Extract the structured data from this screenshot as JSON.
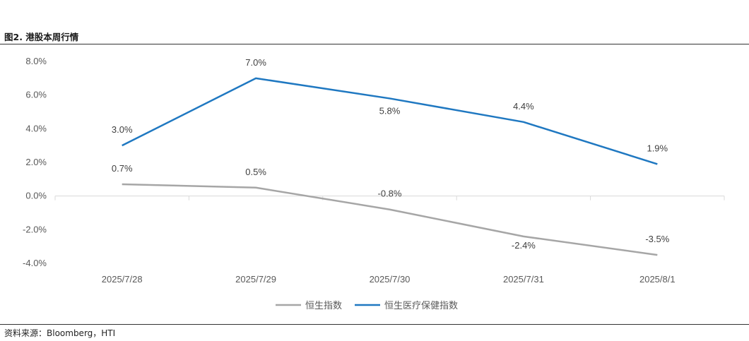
{
  "figure": {
    "title": "图2.  港股本周行情",
    "source": "资料来源：Bloomberg，HTI"
  },
  "chart_data": {
    "type": "line",
    "categories": [
      "2025/7/28",
      "2025/7/29",
      "2025/7/30",
      "2025/7/31",
      "2025/8/1"
    ],
    "series": [
      {
        "name": "恒生指数",
        "color": "#A6A6A6",
        "values": [
          0.7,
          0.5,
          -0.8,
          -2.4,
          -3.5
        ],
        "labels": [
          "0.7%",
          "0.5%",
          "-0.8%",
          "-2.4%",
          "-3.5%"
        ]
      },
      {
        "name": "恒生医疗保健指数",
        "color": "#1F78C1",
        "values": [
          3.0,
          7.0,
          5.8,
          4.4,
          1.9
        ],
        "labels": [
          "3.0%",
          "7.0%",
          "5.8%",
          "4.4%",
          "1.9%"
        ]
      }
    ],
    "yticks": [
      "8.0%",
      "6.0%",
      "4.0%",
      "2.0%",
      "0.0%",
      "-2.0%",
      "-4.0%"
    ],
    "ytick_values": [
      8,
      6,
      4,
      2,
      0,
      -2,
      -4
    ],
    "ylim": [
      -4,
      8
    ],
    "grid": false,
    "legend_position": "bottom"
  }
}
